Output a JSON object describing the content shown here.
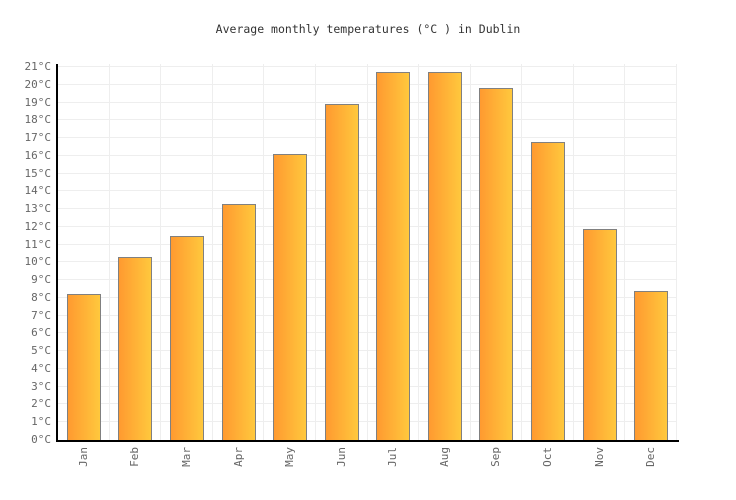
{
  "chart_data": {
    "type": "bar",
    "title": "Average monthly temperatures (°C ) in Dublin",
    "categories": [
      "Jan",
      "Feb",
      "Mar",
      "Apr",
      "May",
      "Jun",
      "Jul",
      "Aug",
      "Sep",
      "Oct",
      "Nov",
      "Dec"
    ],
    "values": [
      8.2,
      10.3,
      11.5,
      13.3,
      16.1,
      18.9,
      20.7,
      20.7,
      19.8,
      16.8,
      11.9,
      8.4
    ],
    "unit": "°C",
    "xlabel": "",
    "ylabel": "",
    "ylim": [
      0,
      21
    ],
    "ytick_step": 1,
    "ytick_labels": [
      "0°C",
      "1°C",
      "2°C",
      "3°C",
      "4°C",
      "5°C",
      "6°C",
      "7°C",
      "8°C",
      "9°C",
      "10°C",
      "11°C",
      "12°C",
      "13°C",
      "14°C",
      "15°C",
      "16°C",
      "17°C",
      "18°C",
      "19°C",
      "20°C",
      "21°C"
    ],
    "grid": true,
    "legend": false,
    "colors": {
      "bar_gradient_left": "#ff9a30",
      "bar_gradient_right": "#ffc83d",
      "bar_border": "#808080",
      "axis": "#000000",
      "gridline": "#eeeeee",
      "tick_label": "#666666",
      "title": "#333333",
      "background": "#ffffff"
    }
  }
}
